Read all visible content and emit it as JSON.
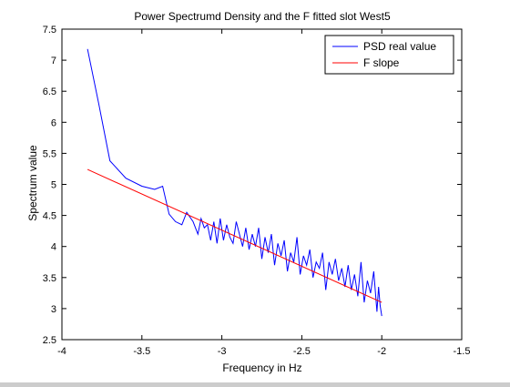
{
  "chart_data": {
    "type": "line",
    "title": "Power Spectrumd Density and the F fitted slot West5",
    "xlabel": "Frequency in Hz",
    "ylabel": "Spectrum value",
    "xlim": [
      -4,
      -1.5
    ],
    "ylim": [
      2.5,
      7.5
    ],
    "xticks": [
      -4,
      -3.5,
      -3,
      -2.5,
      -2,
      -1.5
    ],
    "xtick_labels": [
      "-4",
      "-3.5",
      "-3",
      "-2.5",
      "-2",
      "-1.5"
    ],
    "yticks": [
      2.5,
      3,
      3.5,
      4,
      4.5,
      5,
      5.5,
      6,
      6.5,
      7,
      7.5
    ],
    "ytick_labels": [
      "2.5",
      "3",
      "3.5",
      "4",
      "4.5",
      "5",
      "5.5",
      "6",
      "6.5",
      "7",
      "7.5"
    ],
    "grid": false,
    "legend_position": "top-right",
    "series": [
      {
        "name": "PSD real value",
        "color": "#0000ff",
        "x": [
          -3.84,
          -3.77,
          -3.7,
          -3.6,
          -3.5,
          -3.42,
          -3.37,
          -3.33,
          -3.29,
          -3.25,
          -3.22,
          -3.18,
          -3.15,
          -3.13,
          -3.11,
          -3.09,
          -3.07,
          -3.05,
          -3.03,
          -3.01,
          -2.99,
          -2.97,
          -2.95,
          -2.93,
          -2.91,
          -2.89,
          -2.87,
          -2.85,
          -2.83,
          -2.81,
          -2.79,
          -2.77,
          -2.75,
          -2.73,
          -2.71,
          -2.69,
          -2.67,
          -2.65,
          -2.63,
          -2.61,
          -2.59,
          -2.57,
          -2.55,
          -2.53,
          -2.51,
          -2.49,
          -2.47,
          -2.45,
          -2.43,
          -2.41,
          -2.39,
          -2.37,
          -2.35,
          -2.33,
          -2.31,
          -2.29,
          -2.27,
          -2.25,
          -2.23,
          -2.21,
          -2.19,
          -2.17,
          -2.15,
          -2.13,
          -2.11,
          -2.09,
          -2.07,
          -2.05,
          -2.03,
          -2.02,
          -2.01,
          -2.0
        ],
        "y": [
          7.18,
          6.3,
          5.38,
          5.1,
          4.97,
          4.92,
          4.97,
          4.52,
          4.4,
          4.35,
          4.55,
          4.4,
          4.2,
          4.45,
          4.3,
          4.35,
          4.1,
          4.4,
          4.05,
          4.45,
          4.1,
          4.35,
          4.15,
          4.05,
          4.4,
          4.2,
          4.0,
          4.3,
          3.95,
          4.2,
          4.0,
          4.3,
          3.8,
          4.15,
          3.9,
          4.2,
          3.7,
          4.05,
          3.85,
          4.1,
          3.6,
          3.9,
          3.75,
          4.15,
          3.55,
          3.85,
          3.7,
          3.95,
          3.5,
          3.75,
          3.65,
          3.9,
          3.3,
          3.75,
          3.55,
          3.8,
          3.45,
          3.65,
          3.35,
          3.7,
          3.3,
          3.55,
          3.2,
          3.75,
          3.1,
          3.45,
          3.25,
          3.6,
          2.95,
          3.35,
          3.05,
          2.88
        ]
      },
      {
        "name": "F slope",
        "color": "#ff0000",
        "x": [
          -3.84,
          -2.0
        ],
        "y": [
          5.24,
          3.1
        ]
      }
    ]
  }
}
